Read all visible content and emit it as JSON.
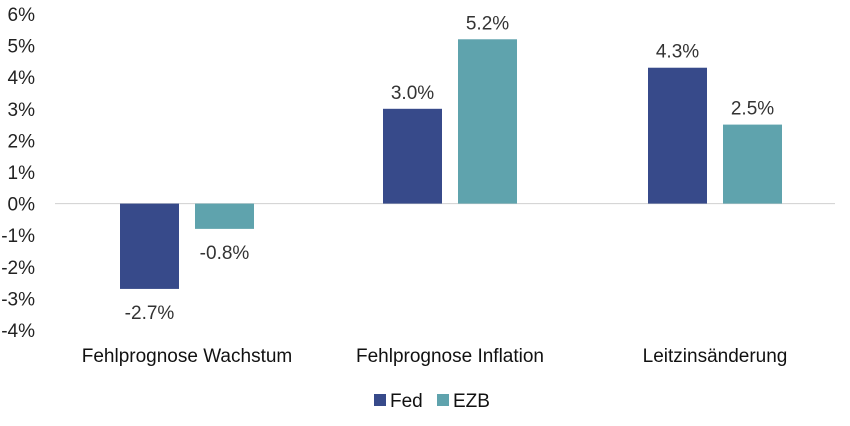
{
  "chart_data": {
    "type": "bar",
    "categories": [
      "Fehlprognose Wachstum",
      "Fehlprognose Inflation",
      "Leitzinsänderung"
    ],
    "series": [
      {
        "name": "Fed",
        "color": "#374a8a",
        "values": [
          -2.7,
          3.0,
          4.3
        ],
        "labels": [
          "-2.7%",
          "3.0%",
          "4.3%"
        ]
      },
      {
        "name": "EZB",
        "color": "#5fa3ad",
        "values": [
          -0.8,
          5.2,
          2.5
        ],
        "labels": [
          "-0.8%",
          "5.2%",
          "2.5%"
        ]
      }
    ],
    "ylim": [
      -4,
      6
    ],
    "yticks": [
      6,
      5,
      4,
      3,
      2,
      1,
      0,
      -1,
      -2,
      -3,
      -4
    ],
    "ytick_labels": [
      "6%",
      "5%",
      "4%",
      "3%",
      "2%",
      "1%",
      "0%",
      "-1%",
      "-2%",
      "-3%",
      "-4%"
    ],
    "title": "",
    "xlabel": "",
    "ylabel": "",
    "grid": false,
    "legend": "bottom-center",
    "zero_line_color": "#d0d0d0"
  }
}
